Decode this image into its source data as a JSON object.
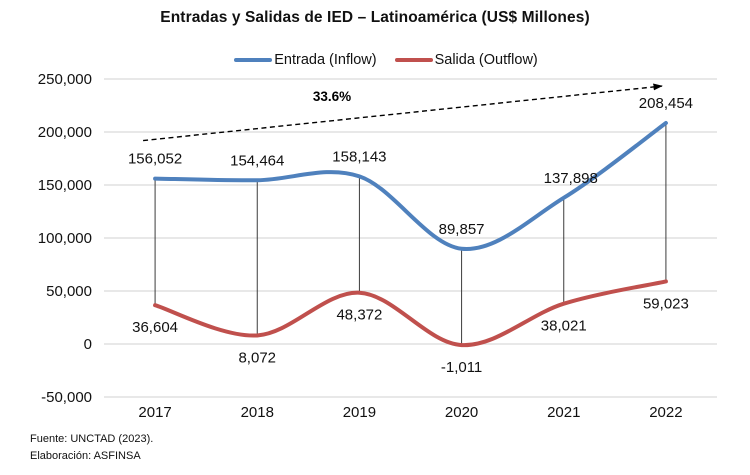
{
  "title": "Entradas y Salidas de IED – Latinoamérica (US$ Millones)",
  "legend": {
    "entrada_label": "Entrada (Inflow)",
    "salida_label": "Salida (Outflow)"
  },
  "footer": {
    "line1": "Fuente: UNCTAD (2023).",
    "line2": "Elaboración: ASFINSA"
  },
  "colors": {
    "entrada": "#4F81BD",
    "salida": "#C0504D",
    "gridline": "#D9D9D9",
    "highlow_line": "#3b3b3b",
    "arrow": "#000000",
    "label_text": "#111111"
  },
  "chart_data": {
    "type": "line",
    "smooth": true,
    "grid": true,
    "high_low_lines": true,
    "legend_position": "top",
    "title": "Entradas y Salidas de IED – Latinoamérica (US$ Millones)",
    "categories": [
      "2017",
      "2018",
      "2019",
      "2020",
      "2021",
      "2022"
    ],
    "series": [
      {
        "name": "Entrada (Inflow)",
        "color": "#4F81BD",
        "values": [
          156052,
          154464,
          158143,
          89857,
          137898,
          208454
        ],
        "labels": [
          "156,052",
          "154,464",
          "158,143",
          "89,857",
          "137,898",
          "208,454"
        ],
        "label_position": "above"
      },
      {
        "name": "Salida (Outflow)",
        "color": "#C0504D",
        "values": [
          36604,
          8072,
          48372,
          -1011,
          38021,
          59023
        ],
        "labels": [
          "36,604",
          "8,072",
          "48,372",
          "-1,011",
          "38,021",
          "59,023"
        ],
        "label_position": "below"
      }
    ],
    "ylim": [
      -50000,
      250000
    ],
    "ytick_step": 50000,
    "ytick_labels_top_to_bottom": [
      "250,000",
      "200,000",
      "150,000",
      "100,000",
      "50,000",
      "0",
      "-50,000"
    ],
    "annotation": {
      "label": "33.6%",
      "type": "dashed-arrow",
      "from_category": "2017",
      "to_category": "2022",
      "series": "Entrada (Inflow)"
    }
  }
}
